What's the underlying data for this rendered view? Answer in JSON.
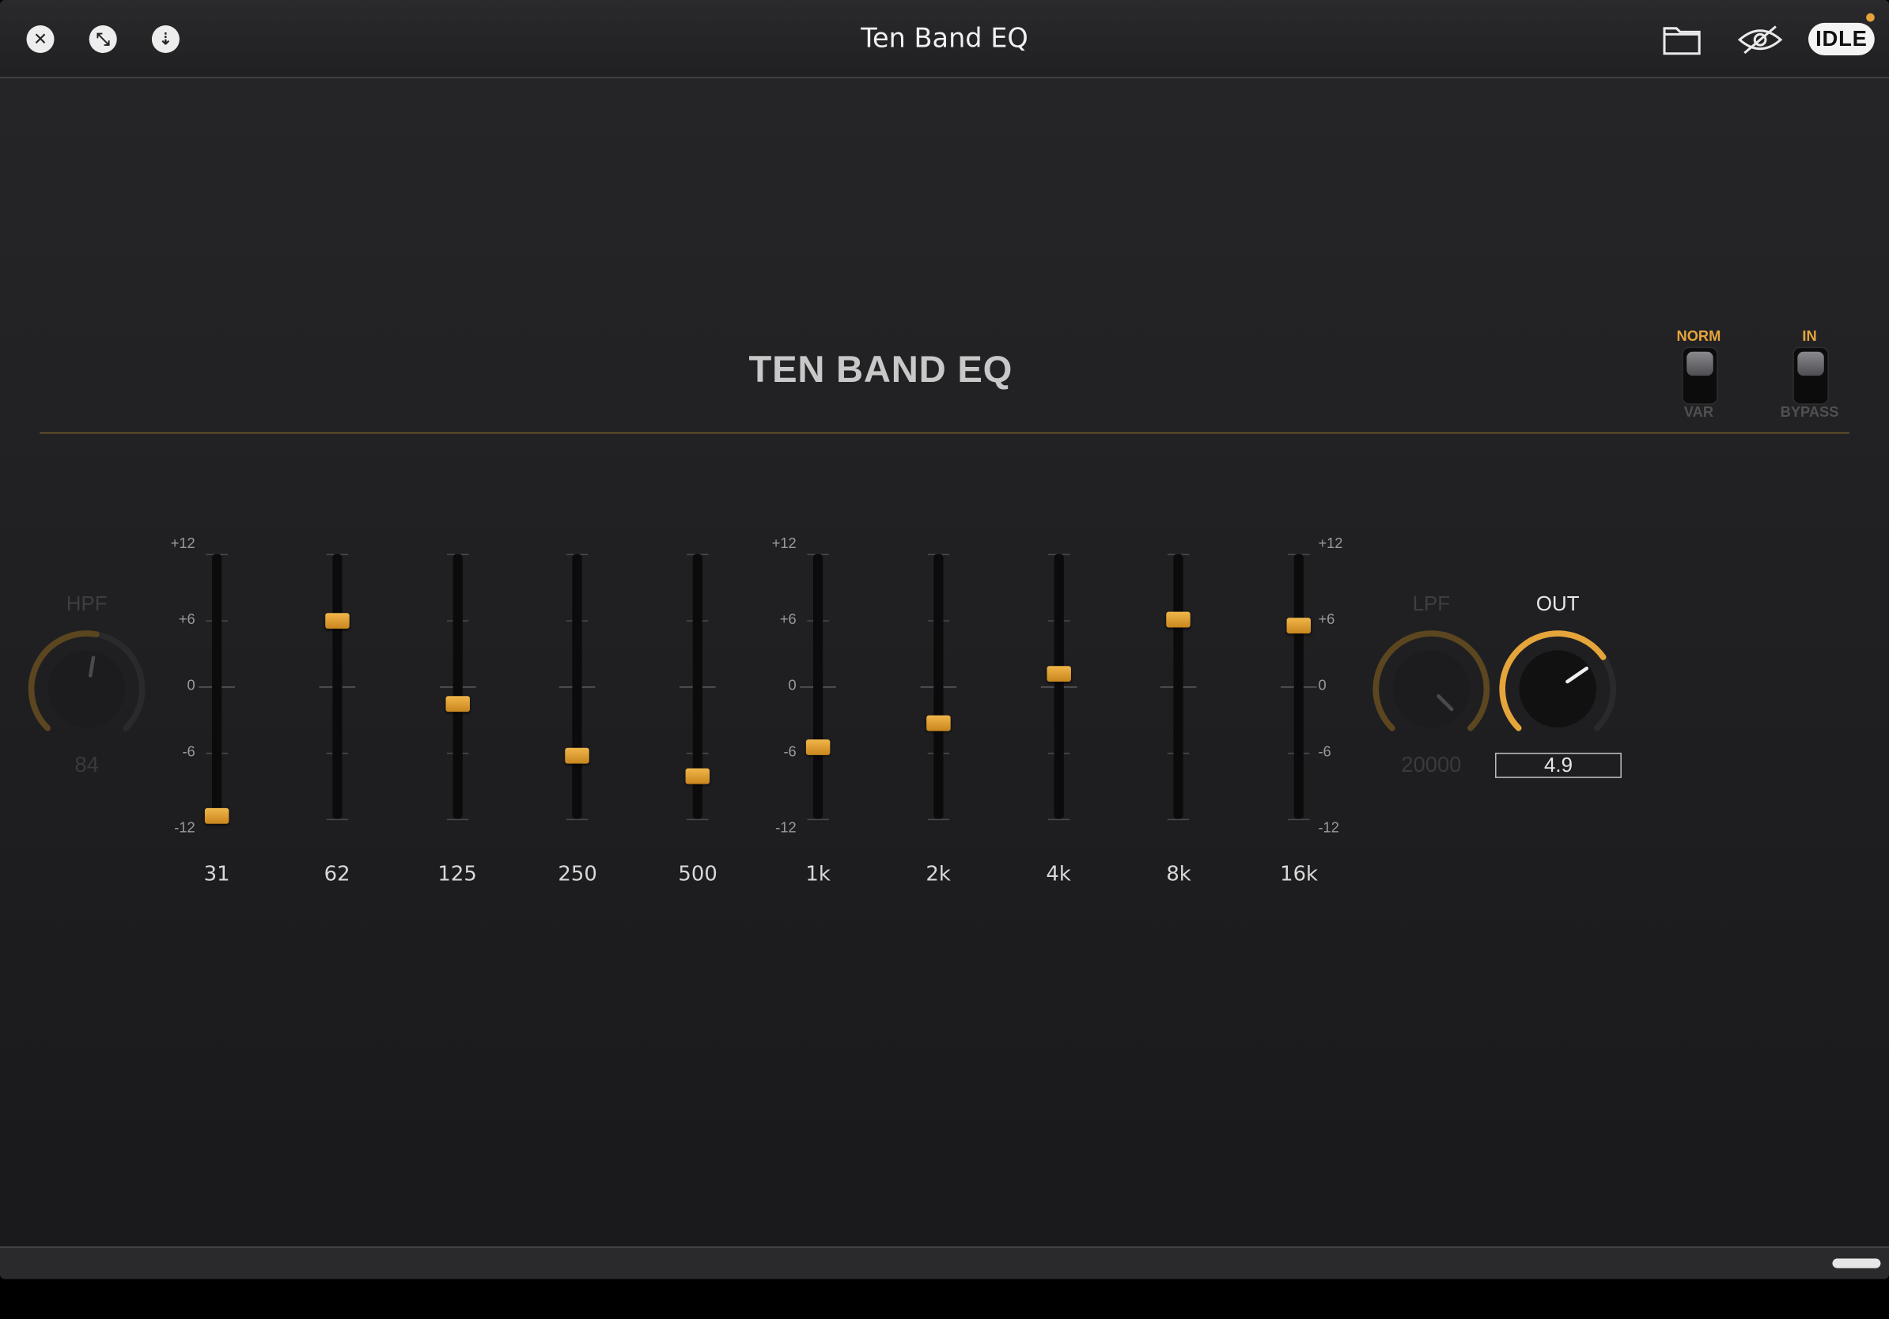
{
  "window": {
    "title": "Ten Band EQ",
    "status_badge": "IDLE"
  },
  "plugin": {
    "title": "TEN BAND EQ"
  },
  "switches": [
    {
      "id": "norm-var",
      "top_label": "NORM",
      "bottom_label": "VAR"
    },
    {
      "id": "in-bypass",
      "top_label": "IN",
      "bottom_label": "BYPASS"
    }
  ],
  "scale": {
    "labels": [
      "+12",
      "+6",
      "0",
      "-6",
      "-12"
    ]
  },
  "bands": [
    {
      "freq": "31",
      "gain_db": -11.7
    },
    {
      "freq": "62",
      "gain_db": 6.0
    },
    {
      "freq": "125",
      "gain_db": -1.5
    },
    {
      "freq": "250",
      "gain_db": -6.2
    },
    {
      "freq": "500",
      "gain_db": -8.1
    },
    {
      "freq": "1k",
      "gain_db": -5.4
    },
    {
      "freq": "2k",
      "gain_db": -3.3
    },
    {
      "freq": "4k",
      "gain_db": 1.2
    },
    {
      "freq": "8k",
      "gain_db": 6.1
    },
    {
      "freq": "16k",
      "gain_db": 5.6
    }
  ],
  "knobs": {
    "hpf": {
      "label": "HPF",
      "value": "84"
    },
    "lpf": {
      "label": "LPF",
      "value": "20000"
    },
    "out": {
      "label": "OUT",
      "value": "4.9"
    }
  },
  "colors": {
    "accent": "#e6a53a",
    "dim_accent": "#6a5020"
  }
}
